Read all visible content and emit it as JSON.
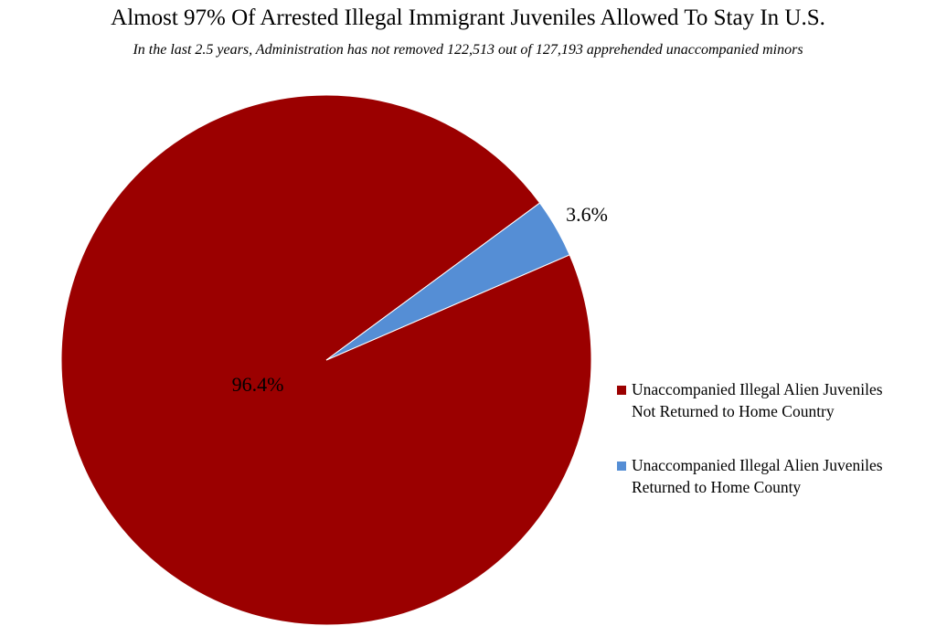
{
  "chart_data": {
    "type": "pie",
    "title": "Almost 97% Of Arrested Illegal Immigrant Juveniles Allowed To Stay In U.S.",
    "subtitle": "In the last 2.5 years, Administration  has not removed 122,513 out of 127,193 apprehended unaccompanied minors",
    "slices": [
      {
        "name": "Unaccompanied Illegal Alien Juveniles Not Returned to Home Country",
        "line1": "Unaccompanied Illegal Alien Juveniles",
        "line2": "Not Returned to Home Country",
        "value": 96.4,
        "label": "96.4%",
        "color": "#9B0000"
      },
      {
        "name": "Unaccompanied Illegal Alien Juveniles Returned to Home County",
        "line1": "Unaccompanied Illegal Alien Juveniles",
        "line2": "Returned to Home County",
        "value": 3.6,
        "label": "3.6%",
        "color": "#558ED5"
      }
    ],
    "legend_position": "right"
  }
}
